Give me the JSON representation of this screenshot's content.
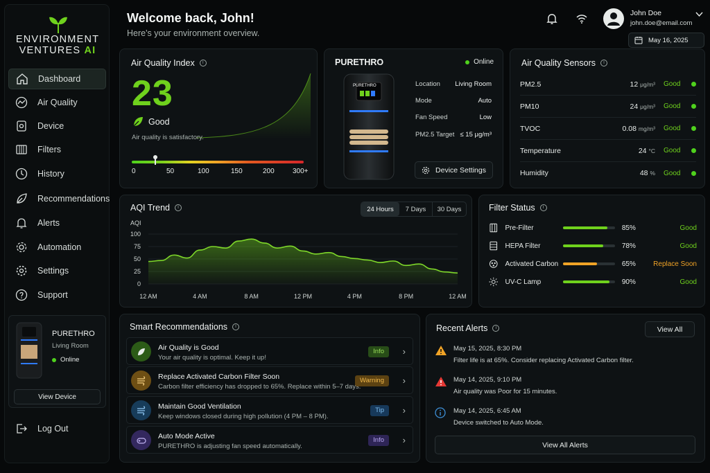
{
  "brand": {
    "line1": "ENVIRONMENT",
    "line2": "VENTURES",
    "line2_accent": "AI"
  },
  "nav": [
    {
      "label": "Dashboard",
      "icon": "home-icon",
      "active": true
    },
    {
      "label": "Air Quality",
      "icon": "chart-line-icon"
    },
    {
      "label": "Device",
      "icon": "device-icon"
    },
    {
      "label": "Filters",
      "icon": "filter-icon"
    },
    {
      "label": "History",
      "icon": "clock-icon"
    },
    {
      "label": "Recommendations",
      "icon": "leaf-icon"
    },
    {
      "label": "Alerts",
      "icon": "bell-icon"
    },
    {
      "label": "Automation",
      "icon": "automation-gear-icon"
    },
    {
      "label": "Settings",
      "icon": "gear-icon"
    },
    {
      "label": "Support",
      "icon": "help-icon"
    }
  ],
  "sidebar_device": {
    "name": "PURETHRO",
    "location": "Living Room",
    "status": "Online",
    "button": "View Device"
  },
  "logout": "Log Out",
  "header": {
    "welcome": "Welcome back, John!",
    "subtitle": "Here's your environment overview.",
    "user_name": "John Doe",
    "user_email": "john.doe@email.com",
    "date": "May 16, 2025"
  },
  "aqi": {
    "title": "Air Quality Index",
    "value": "23",
    "level": "Good",
    "message": "Air quality is satisfactory.",
    "scale": [
      "0",
      "50",
      "100",
      "150",
      "200",
      "300+"
    ],
    "pointer_value": 23,
    "scale_max": 300
  },
  "device": {
    "name": "PURETHRO",
    "status": "Online",
    "screen_label": "PURETHRO",
    "props": [
      {
        "label": "Location",
        "value": "Living Room"
      },
      {
        "label": "Mode",
        "value": "Auto"
      },
      {
        "label": "Fan Speed",
        "value": "Low"
      },
      {
        "label": "PM2.5 Target",
        "value": "≤ 15 μg/m³"
      }
    ],
    "button": "Device Settings"
  },
  "sensors": {
    "title": "Air Quality Sensors",
    "rows": [
      {
        "name": "PM2.5",
        "value": "12",
        "unit": "μg/m³",
        "status": "Good"
      },
      {
        "name": "PM10",
        "value": "24",
        "unit": "μg/m³",
        "status": "Good"
      },
      {
        "name": "TVOC",
        "value": "0.08",
        "unit": "mg/m³",
        "status": "Good"
      },
      {
        "name": "Temperature",
        "value": "24",
        "unit": "°C",
        "status": "Good"
      },
      {
        "name": "Humidity",
        "value": "48",
        "unit": "%",
        "status": "Good"
      }
    ]
  },
  "trend": {
    "title": "AQI Trend",
    "tabs": [
      "24 Hours",
      "7 Days",
      "30 Days"
    ],
    "active_tab": "24 Hours"
  },
  "chart_data": {
    "type": "area",
    "ylabel": "AQI",
    "ylim": [
      0,
      100
    ],
    "yticks": [
      0,
      25,
      50,
      75,
      100
    ],
    "xticks": [
      "12 AM",
      "4 AM",
      "8 AM",
      "12 PM",
      "4 PM",
      "8 PM",
      "12 AM"
    ],
    "x": [
      0,
      1,
      2,
      3,
      4,
      5,
      6,
      7,
      8,
      9,
      10,
      11,
      12,
      13,
      14,
      15,
      16,
      17,
      18,
      19,
      20,
      21,
      22,
      23,
      24
    ],
    "values": [
      45,
      47,
      58,
      52,
      68,
      75,
      72,
      86,
      90,
      82,
      72,
      76,
      66,
      60,
      63,
      55,
      51,
      48,
      43,
      46,
      37,
      40,
      30,
      24,
      22
    ],
    "grid": true
  },
  "filters": {
    "title": "Filter Status",
    "rows": [
      {
        "name": "Pre-Filter",
        "percent": 85,
        "percent_label": "85%",
        "status": "Good",
        "icon": "pre-filter-icon"
      },
      {
        "name": "HEPA Filter",
        "percent": 78,
        "percent_label": "78%",
        "status": "Good",
        "icon": "hepa-filter-icon"
      },
      {
        "name": "Activated Carbon",
        "percent": 65,
        "percent_label": "65%",
        "status": "Replace Soon",
        "icon": "carbon-filter-icon"
      },
      {
        "name": "UV-C Lamp",
        "percent": 90,
        "percent_label": "90%",
        "status": "Good",
        "icon": "uv-lamp-icon"
      }
    ]
  },
  "recommendations": {
    "title": "Smart Recommendations",
    "items": [
      {
        "title": "Air Quality is Good",
        "text": "Your air quality is optimal. Keep it up!",
        "badge": "Info"
      },
      {
        "title": "Replace Activated Carbon Filter Soon",
        "text": "Carbon filter efficiency has dropped to 65%. Replace within 5–7 days.",
        "badge": "Warning"
      },
      {
        "title": "Maintain Good Ventilation",
        "text": "Keep windows closed during high pollution (4 PM – 8 PM).",
        "badge": "Tip"
      },
      {
        "title": "Auto Mode Active",
        "text": "PURETHRO is adjusting fan speed automatically.",
        "badge": "Info"
      }
    ]
  },
  "alerts": {
    "title": "Recent Alerts",
    "view_all": "View All",
    "view_all_alerts": "View All Alerts",
    "items": [
      {
        "date": "May 15, 2025, 8:30 PM",
        "message": "Filter life is at 65%. Consider replacing Activated Carbon filter.",
        "icon": "warning-icon"
      },
      {
        "date": "May 14, 2025, 9:10 PM",
        "message": "Air quality was Poor for 15 minutes.",
        "icon": "alert-icon"
      },
      {
        "date": "May 14, 2025, 6:45 AM",
        "message": "Device switched to Auto Mode.",
        "icon": "info-icon"
      }
    ]
  },
  "colors": {
    "accent": "#6fd11d",
    "warning": "#f0a326",
    "danger": "#e53935",
    "info_blue": "#3d8fd6"
  }
}
